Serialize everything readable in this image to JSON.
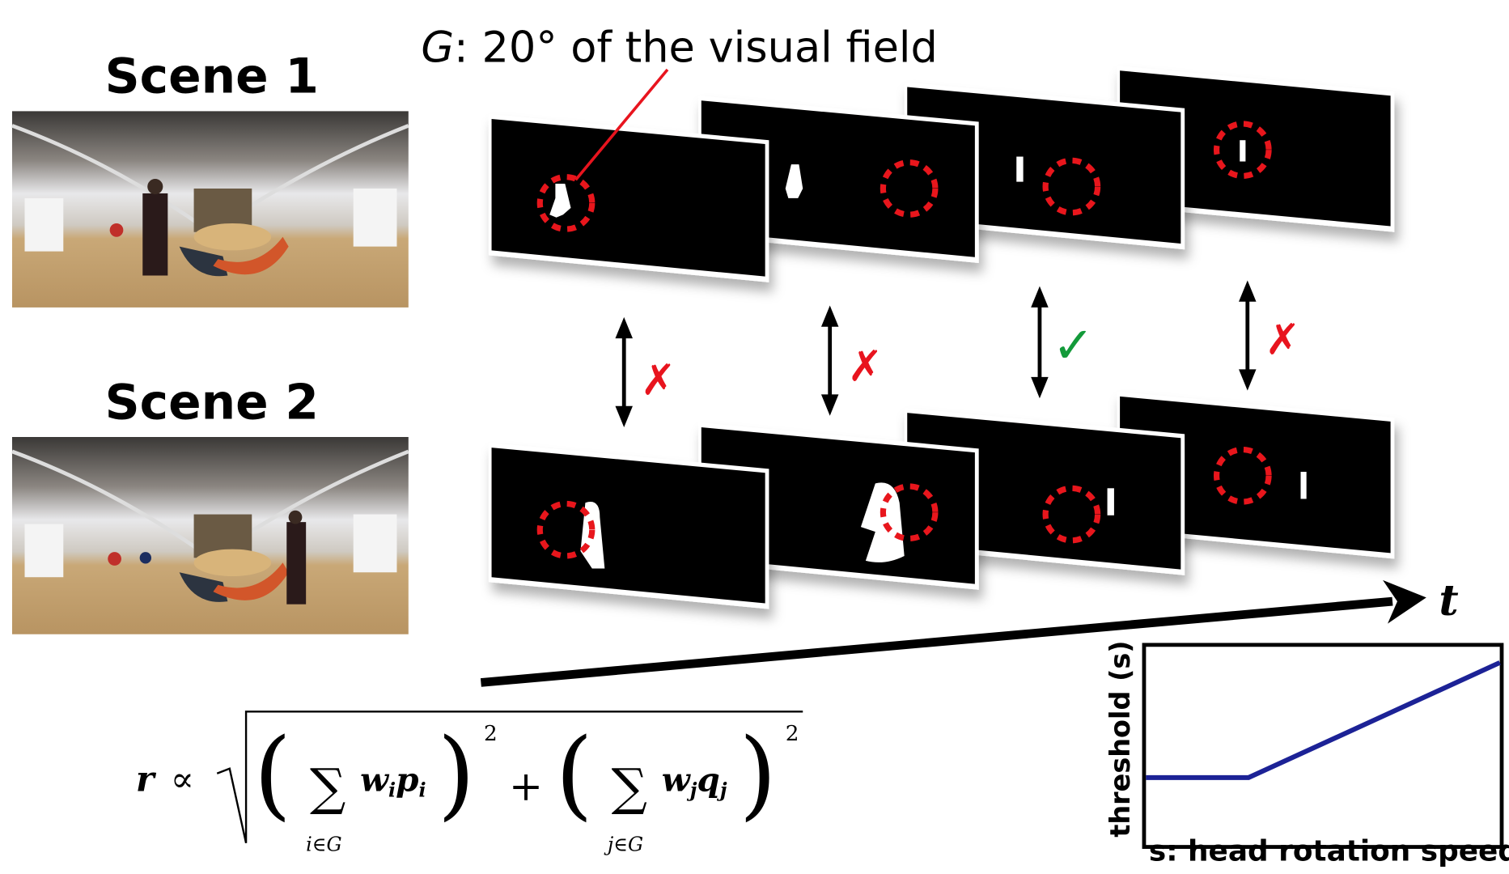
{
  "scene1_label": "Scene 1",
  "scene2_label": "Scene 2",
  "region_caption": {
    "prefix": "G",
    "rest": ": 20° of the visual field"
  },
  "time_label": "t",
  "comparisons": [
    {
      "result": "mismatch",
      "mark": "✗"
    },
    {
      "result": "mismatch",
      "mark": "✗"
    },
    {
      "result": "match",
      "mark": "✓"
    },
    {
      "result": "mismatch",
      "mark": "✗"
    }
  ],
  "colors": {
    "circle": "#e8141e",
    "cross": "#e8141e",
    "check": "#139a3a",
    "curve": "#1c2296",
    "frame": "#050303"
  },
  "formula": {
    "lhs": "r",
    "prop": "∝",
    "sum": "∑",
    "sub1": "i∈G",
    "w1": "w",
    "wi": "i",
    "p1": "p",
    "pi": "i",
    "sub2": "j∈G",
    "w2": "w",
    "wj": "j",
    "q2": "q",
    "qj": "j",
    "plus": "+",
    "exp": "2",
    "lparen": "(",
    "rparen": ")"
  },
  "chart_data": {
    "type": "line",
    "title": "",
    "xlabel": "s: head rotation speed",
    "ylabel": "threshold (s)",
    "x": [
      0,
      0.29,
      1.0
    ],
    "y": [
      0.34,
      0.34,
      0.92
    ],
    "xlim": [
      0,
      1
    ],
    "ylim": [
      0,
      1
    ],
    "grid": false
  }
}
